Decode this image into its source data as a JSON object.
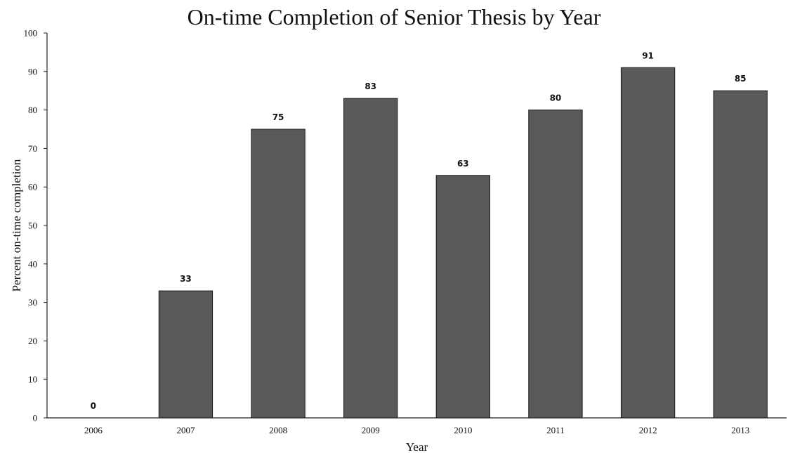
{
  "chart_data": {
    "type": "bar",
    "title": "On-time Completion of Senior Thesis by Year",
    "xlabel": "Year",
    "ylabel": "Percent on-time completion",
    "categories": [
      "2006",
      "2007",
      "2008",
      "2009",
      "2010",
      "2011",
      "2012",
      "2013"
    ],
    "values": [
      0,
      33,
      75,
      83,
      63,
      80,
      91,
      85
    ],
    "data_labels": [
      "0",
      "33",
      "75",
      "83",
      "63",
      "80",
      "91",
      "85"
    ],
    "ylim": [
      0,
      100
    ],
    "yticks": [
      0,
      10,
      20,
      30,
      40,
      50,
      60,
      70,
      80,
      90,
      100
    ],
    "grid": false,
    "legend": "none",
    "bar_color": "#595959",
    "bar_edge_color": "#1a1a1a"
  }
}
